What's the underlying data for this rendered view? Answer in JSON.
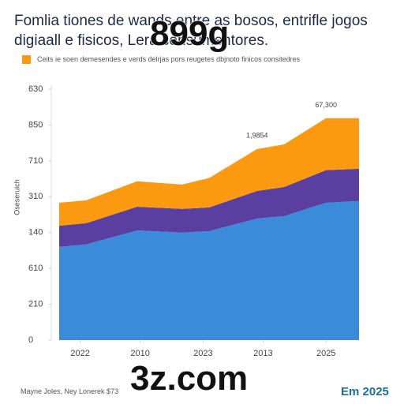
{
  "chart_data": {
    "type": "area",
    "title": "Fomlia tiones de wands entre as bosos, entrifle jogos digiaall e fisicos, Lera consumentores.",
    "ylabel": "Oseseruich",
    "x": [
      0,
      0.9,
      2.6,
      4.1,
      5,
      6.6,
      7.5,
      8.9,
      10
    ],
    "xlim": [
      0,
      10
    ],
    "xticks": [
      {
        "value": 0.7,
        "label": "2022"
      },
      {
        "value": 2.7,
        "label": "2010"
      },
      {
        "value": 4.8,
        "label": "2023"
      },
      {
        "value": 6.8,
        "label": "2013"
      },
      {
        "value": 8.9,
        "label": "2025"
      }
    ],
    "ylim": [
      0,
      7
    ],
    "yticks": [
      {
        "value": 0,
        "label": "0"
      },
      {
        "value": 1,
        "label": "210"
      },
      {
        "value": 2,
        "label": "610"
      },
      {
        "value": 3,
        "label": "140"
      },
      {
        "value": 4,
        "label": "310"
      },
      {
        "value": 5,
        "label": "710"
      },
      {
        "value": 6,
        "label": "850"
      },
      {
        "value": 7,
        "label": "630"
      }
    ],
    "series": [
      {
        "color": "#3a8bd8",
        "values": [
          2.6,
          2.67,
          3.06,
          3.0,
          3.04,
          3.39,
          3.46,
          3.83,
          3.88
        ]
      },
      {
        "color": "#5b3fa0",
        "values": [
          0.59,
          0.59,
          0.66,
          0.66,
          0.66,
          0.77,
          0.81,
          0.91,
          0.9
        ]
      },
      {
        "name": "Ceits ie soen demesendes e verds delrjas pors reugetes dbjnoto finicos consitedres",
        "color": "#fb9a10",
        "values": [
          0.64,
          0.64,
          0.71,
          0.68,
          0.82,
          1.17,
          1.19,
          1.45,
          1.41
        ]
      }
    ],
    "annotations": [
      {
        "text": "1,9854",
        "x": 6.6,
        "y": 5.7
      },
      {
        "text": "67,300",
        "x": 8.9,
        "y": 6.55
      }
    ],
    "watermarks": [
      "899g",
      "3z.com"
    ],
    "source": "Mayne Joles, Ney Lonerek $73",
    "footnote": "Em 2025"
  }
}
